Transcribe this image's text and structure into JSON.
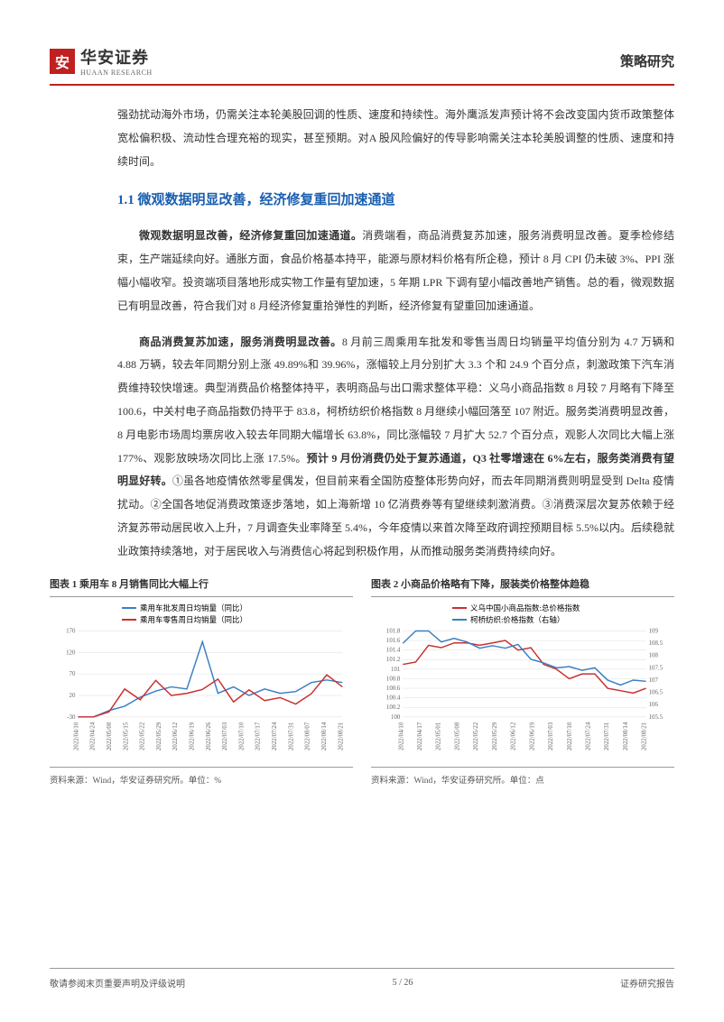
{
  "header": {
    "logo_char": "安",
    "company_zh": "华安证券",
    "company_en": "HUAAN RESEARCH",
    "category": "策略研究"
  },
  "body": {
    "intro_para": "强劲扰动海外市场，仍需关注本轮美股回调的性质、速度和持续性。海外鹰派发声预计将不会改变国内货币政策整体宽松偏积极、流动性合理充裕的现实，甚至预期。对A 股风险偏好的传导影响需关注本轮美股调整的性质、速度和持续时间。",
    "section_title": "1.1 微观数据明显改善，经济修复重回加速通道",
    "para2_bold": "微观数据明显改善，经济修复重回加速通道。",
    "para2_rest": "消费端看，商品消费复苏加速，服务消费明显改善。夏季检修结束，生产端延续向好。通胀方面，食品价格基本持平，能源与原材料价格有所企稳，预计 8 月 CPI 仍未破 3%、PPI 涨幅小幅收窄。投资端项目落地形成实物工作量有望加速，5 年期 LPR 下调有望小幅改善地产销售。总的看，微观数据已有明显改善，符合我们对 8 月经济修复重拾弹性的判断，经济修复有望重回加速通道。",
    "para3_bold": "商品消费复苏加速，服务消费明显改善。",
    "para3_mid": "8 月前三周乘用车批发和零售当周日均销量平均值分别为 4.7 万辆和 4.88 万辆，较去年同期分别上涨 49.89%和 39.96%，涨幅较上月分别扩大 3.3 个和 24.9 个百分点，刺激政策下汽车消费维持较快增速。典型消费品价格整体持平，表明商品与出口需求整体平稳：义乌小商品指数 8 月较 7 月略有下降至 100.6，中关村电子商品指数仍持平于 83.8，柯桥纺织价格指数 8 月继续小幅回落至 107 附近。服务类消费明显改善，8 月电影市场周均票房收入较去年同期大幅增长 63.8%，同比涨幅较 7 月扩大 52.7 个百分点，观影人次同比大幅上涨 177%、观影放映场次同比上涨 17.5%。",
    "para3_bold2": "预计 9 月份消费仍处于复苏通道，Q3 社零增速在 6%左右，服务类消费有望明显好转。",
    "para3_rest": "①虽各地疫情依然零星偶发，但目前来看全国防疫整体形势向好，而去年同期消费则明显受到 Delta 疫情扰动。②全国各地促消费政策逐步落地，如上海新增 10 亿消费券等有望继续刺激消费。③消费深层次复苏依赖于经济复苏带动居民收入上升，7 月调查失业率降至 5.4%，今年疫情以来首次降至政府调控预期目标 5.5%以内。后续稳就业政策持续落地，对于居民收入与消费信心将起到积极作用，从而推动服务类消费持续向好。"
  },
  "chart1": {
    "title": "图表 1 乘用车 8 月销售同比大幅上行",
    "legend1": "乘用车批发周日均销量（同比）",
    "legend2": "乘用车零售周日均销量（同比）",
    "color1": "#3b7fc4",
    "color2": "#c93030",
    "source": "资料来源：Wind，华安证券研究所。单位：%",
    "x_labels": [
      "2022/04/10",
      "2022/04/24",
      "2022/05/08",
      "2022/05/15",
      "2022/05/22",
      "2022/05/29",
      "2022/06/12",
      "2022/06/19",
      "2022/06/26",
      "2022/07/03",
      "2022/07/10",
      "2022/07/17",
      "2022/07/24",
      "2022/07/31",
      "2022/08/07",
      "2022/08/14",
      "2022/08/21"
    ],
    "y_ticks": [
      -30,
      20,
      70,
      120,
      170
    ],
    "series1": [
      -30,
      -30,
      -15,
      -5,
      16,
      30,
      40,
      35,
      145,
      25,
      40,
      20,
      35,
      25,
      29,
      50,
      56,
      50
    ],
    "series2": [
      -30,
      -30,
      -18,
      35,
      10,
      55,
      20,
      25,
      34,
      58,
      5,
      33,
      8,
      15,
      0,
      24,
      68,
      40
    ]
  },
  "chart2": {
    "title": "图表 2 小商品价格略有下降，服装类价格整体趋稳",
    "legend1": "义乌中国小商品指数:总价格指数",
    "legend2": "柯桥纺织:价格指数（右轴）",
    "color1": "#c93030",
    "color2": "#3b7fc4",
    "source": "资料来源：Wind，华安证券研究所。单位：点",
    "x_labels": [
      "2022/04/10",
      "2022/04/17",
      "2022/05/01",
      "2022/05/08",
      "2022/05/22",
      "2022/05/29",
      "2022/06/12",
      "2022/06/19",
      "2022/07/03",
      "2022/07/10",
      "2022/07/24",
      "2022/07/31",
      "2022/08/14",
      "2022/08/21"
    ],
    "y_left_ticks": [
      100,
      100.2,
      100.4,
      100.6,
      100.8,
      101,
      101.2,
      101.4,
      101.6,
      101.8
    ],
    "y_right_ticks": [
      105.5,
      106,
      106.5,
      107,
      107.5,
      108,
      108.5,
      109
    ],
    "series1": [
      101.1,
      101.15,
      101.5,
      101.45,
      101.55,
      101.55,
      101.5,
      101.55,
      101.6,
      101.4,
      101.45,
      101.1,
      101.0,
      100.8,
      100.9,
      100.9,
      100.6,
      100.55,
      100.5,
      100.6
    ],
    "series2": [
      108.5,
      109.0,
      109.0,
      108.55,
      108.7,
      108.55,
      108.3,
      108.4,
      108.3,
      108.45,
      107.85,
      107.7,
      107.5,
      107.55,
      107.4,
      107.5,
      107.0,
      106.8,
      107.0,
      106.95
    ]
  },
  "footer": {
    "left": "敬请参阅末页重要声明及评级说明",
    "page": "5 / 26",
    "right": "证券研究报告"
  }
}
